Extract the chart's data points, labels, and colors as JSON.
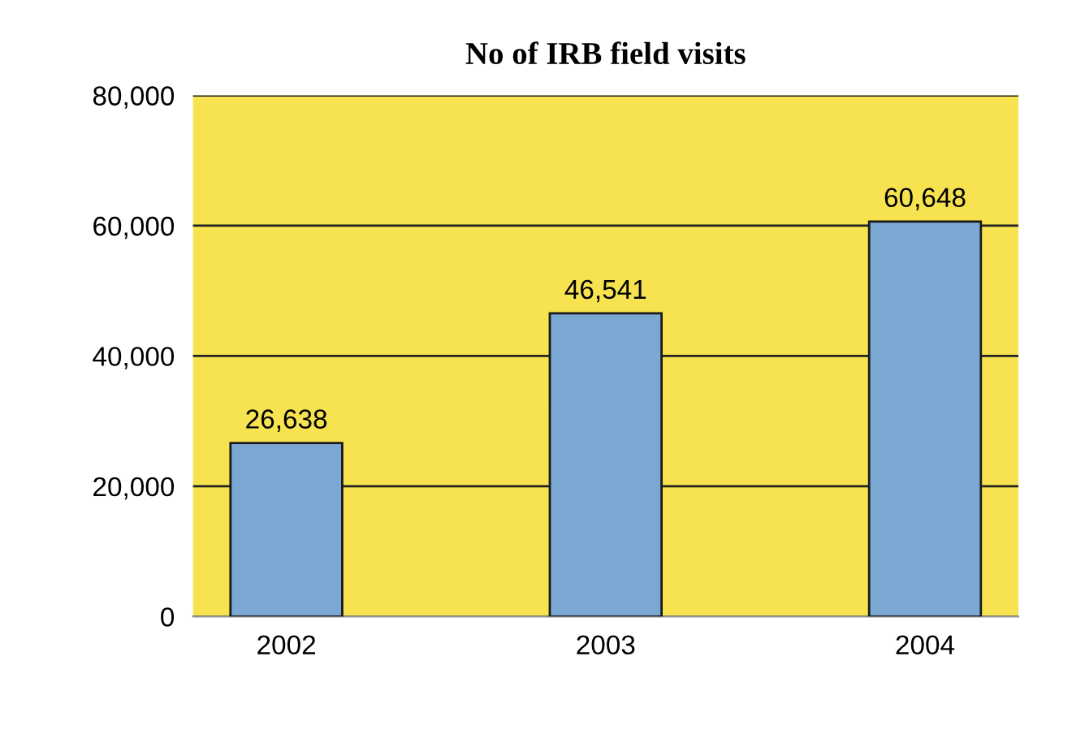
{
  "chart_data": {
    "type": "bar",
    "title": "No of IRB field visits",
    "categories": [
      "2002",
      "2003",
      "2004"
    ],
    "values": [
      26638,
      46541,
      60648
    ],
    "value_labels": [
      "26,638",
      "46,541",
      "60,648"
    ],
    "color": "#7ba7d3",
    "ylim": [
      0,
      80000
    ],
    "yticks": [
      {
        "value": 0,
        "label": "0"
      },
      {
        "value": 20000,
        "label": "20,000"
      },
      {
        "value": 40000,
        "label": "40,000"
      },
      {
        "value": 60000,
        "label": "60,000"
      },
      {
        "value": 80000,
        "label": "80,000"
      }
    ],
    "grid": "y"
  }
}
